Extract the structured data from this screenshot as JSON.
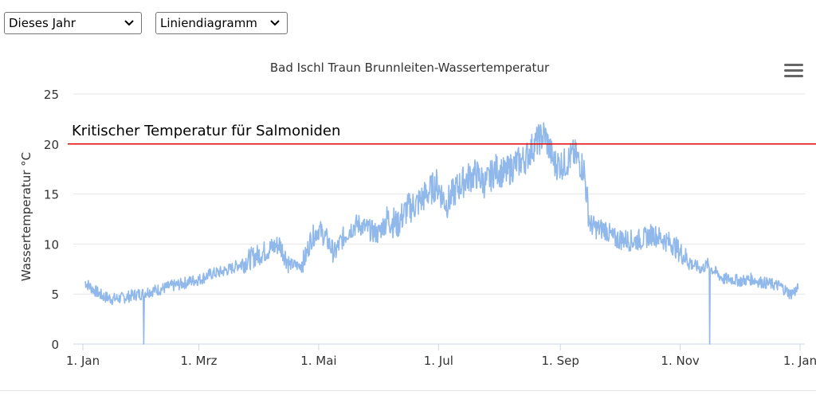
{
  "controls": {
    "range_select": {
      "value": "Dieses Jahr"
    },
    "type_select": {
      "value": "Liniendiagramm"
    }
  },
  "colors": {
    "series": "#90b8ea",
    "threshold": "#e60000",
    "grid": "#e6e6e6",
    "axis": "#ccd6eb"
  },
  "icons": {
    "menu": "hamburger-menu-icon",
    "dropdown": "chevron-down-icon"
  },
  "chart_data": {
    "type": "line",
    "title": "Bad Ischl Traun Brunnleiten-Wassertemperatur",
    "xlabel": "",
    "ylabel": "Wassertemperatur °C",
    "ylim": [
      0,
      25
    ],
    "yticks": [
      0,
      5,
      10,
      15,
      20,
      25
    ],
    "xticks": [
      {
        "label": "1. Jan",
        "day": 0
      },
      {
        "label": "1. Mrz",
        "day": 59
      },
      {
        "label": "1. Mai",
        "day": 120
      },
      {
        "label": "1. Jul",
        "day": 181
      },
      {
        "label": "1. Sep",
        "day": 243
      },
      {
        "label": "1. Nov",
        "day": 304
      },
      {
        "label": "1. Jan",
        "day": 365
      }
    ],
    "grid": true,
    "plot_lines": [
      {
        "value": 20,
        "label": "Kritischer Temperatur für Salmoniden",
        "color": "#e60000"
      }
    ],
    "series": [
      {
        "days": [
          1,
          5,
          10,
          15,
          20,
          24,
          28,
          30,
          32,
          40,
          45,
          50,
          55,
          60,
          65,
          70,
          75,
          80,
          85,
          90,
          95,
          100,
          105,
          110,
          113,
          116,
          120,
          124,
          128,
          132,
          136,
          140,
          145,
          150,
          155,
          160,
          165,
          170,
          175,
          180,
          185,
          190,
          195,
          200,
          205,
          210,
          215,
          220,
          225,
          230,
          235,
          240,
          245,
          250,
          255,
          258,
          262,
          266,
          270,
          275,
          280,
          285,
          290,
          295,
          300,
          305,
          310,
          315,
          318,
          320,
          323,
          326,
          330,
          335,
          340,
          345,
          350,
          355,
          360,
          364
        ],
        "values": [
          6.2,
          5.5,
          4.8,
          4.5,
          4.6,
          4.8,
          5.0,
          5.0,
          5.2,
          5.5,
          5.8,
          6.0,
          6.3,
          6.5,
          7.0,
          7.2,
          7.5,
          8.0,
          8.5,
          9.0,
          9.5,
          10.0,
          8.0,
          7.8,
          8.5,
          10.5,
          11.5,
          10.5,
          9.0,
          10.5,
          11.5,
          12.0,
          11.5,
          11.0,
          12.5,
          12.0,
          13.5,
          14.0,
          15.0,
          16.0,
          14.0,
          15.5,
          16.5,
          17.0,
          16.0,
          17.5,
          17.0,
          18.0,
          18.5,
          20.0,
          21.0,
          18.0,
          18.0,
          19.0,
          17.5,
          12.0,
          11.5,
          11.5,
          10.5,
          10.5,
          10.3,
          10.5,
          11.0,
          10.5,
          10.0,
          9.0,
          8.0,
          7.5,
          8.0,
          7.5,
          7.0,
          6.5,
          6.5,
          6.3,
          6.5,
          6.2,
          6.0,
          5.8,
          5.0,
          5.5
        ]
      }
    ],
    "outliers": [
      {
        "day": 31,
        "value": 0
      },
      {
        "day": 319,
        "value": 0
      }
    ]
  }
}
